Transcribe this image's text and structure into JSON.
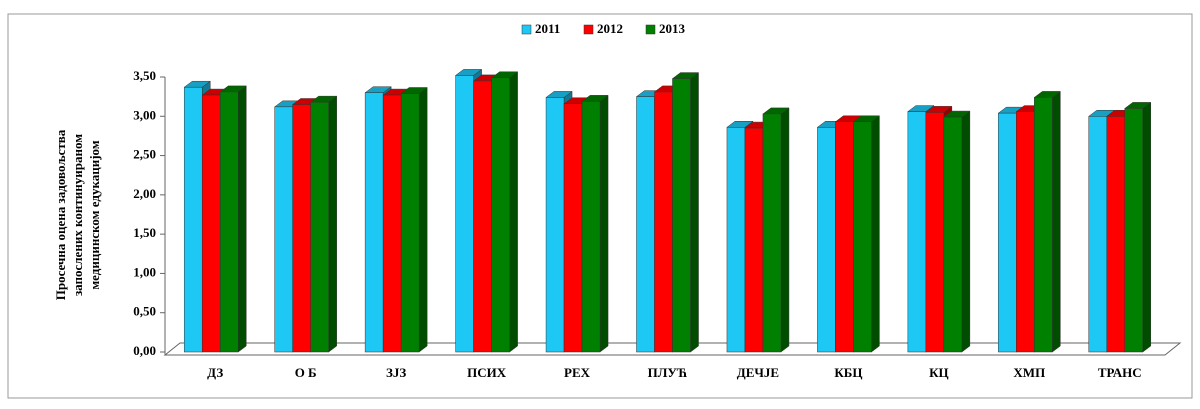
{
  "chart_data": {
    "type": "bar",
    "ylabel": [
      "Просечна оцена задовољства",
      "запослених континуираном",
      "медицинском едукацијом"
    ],
    "categories": [
      "ДЗ",
      "О Б",
      "ЗЈЗ",
      "ПСИХ",
      "РЕХ",
      "ПЛУЋ",
      "ДЕЧЈЕ",
      "КБЦ",
      "КЦ",
      "ХМП",
      "ТРАНС"
    ],
    "series": [
      {
        "name": "2011",
        "color": "#1ec8f5",
        "values": [
          3.37,
          3.12,
          3.3,
          3.52,
          3.24,
          3.25,
          2.86,
          2.86,
          3.06,
          3.04,
          3.0
        ]
      },
      {
        "name": "2012",
        "color": "#ff0000",
        "values": [
          3.27,
          3.15,
          3.27,
          3.45,
          3.16,
          3.31,
          2.85,
          2.93,
          3.05,
          3.06,
          3.0
        ]
      },
      {
        "name": "2013",
        "color": "#008000",
        "values": [
          3.31,
          3.18,
          3.29,
          3.49,
          3.19,
          3.48,
          3.03,
          2.93,
          2.99,
          3.24,
          3.1
        ]
      }
    ],
    "ylim": [
      0,
      3.5
    ],
    "yticks": [
      {
        "value": 0,
        "label": "0,00"
      },
      {
        "value": 0.5,
        "label": "0,50"
      },
      {
        "value": 1,
        "label": "1,00"
      },
      {
        "value": 1.5,
        "label": "1,50"
      },
      {
        "value": 2,
        "label": "2,00"
      },
      {
        "value": 2.5,
        "label": "2,50"
      },
      {
        "value": 3,
        "label": "3,00"
      },
      {
        "value": 3.5,
        "label": "3,50"
      }
    ],
    "legend": "top"
  }
}
